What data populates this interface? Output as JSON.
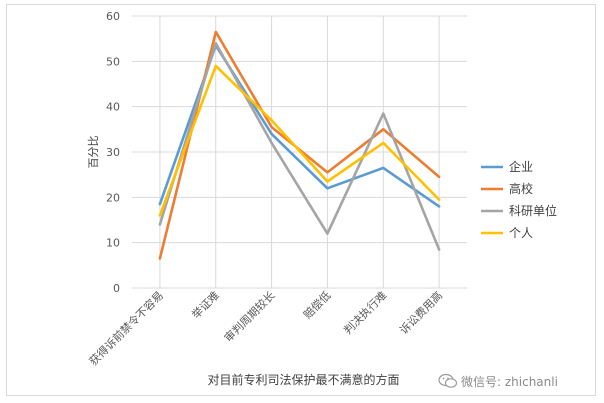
{
  "chart_data": {
    "type": "line",
    "title": "",
    "xlabel": "对目前专利司法保护最不满意的方面",
    "ylabel": "百分比",
    "ylim": [
      0,
      60
    ],
    "yticks": [
      0,
      10,
      20,
      30,
      40,
      50,
      60
    ],
    "grid": true,
    "legend_position": "right",
    "categories": [
      "获得诉前禁令不容易",
      "举证难",
      "审判周期较长",
      "赔偿低",
      "判决执行难",
      "诉讼费用高"
    ],
    "series": [
      {
        "name": "企业",
        "color": "#5b9bd5",
        "values": [
          18.5,
          53.5,
          34,
          22,
          26.5,
          18
        ]
      },
      {
        "name": "高校",
        "color": "#ed7d31",
        "values": [
          6.5,
          56.5,
          35.5,
          25.5,
          35,
          24.5
        ]
      },
      {
        "name": "科研单位",
        "color": "#a5a5a5",
        "values": [
          14,
          54,
          32,
          12,
          38.5,
          8.5
        ]
      },
      {
        "name": "个人",
        "color": "#ffc000",
        "values": [
          16,
          49,
          37,
          23.5,
          32,
          19.5
        ]
      }
    ]
  },
  "watermark": {
    "text": "微信号: zhichanli",
    "icon": "wechat-icon"
  }
}
